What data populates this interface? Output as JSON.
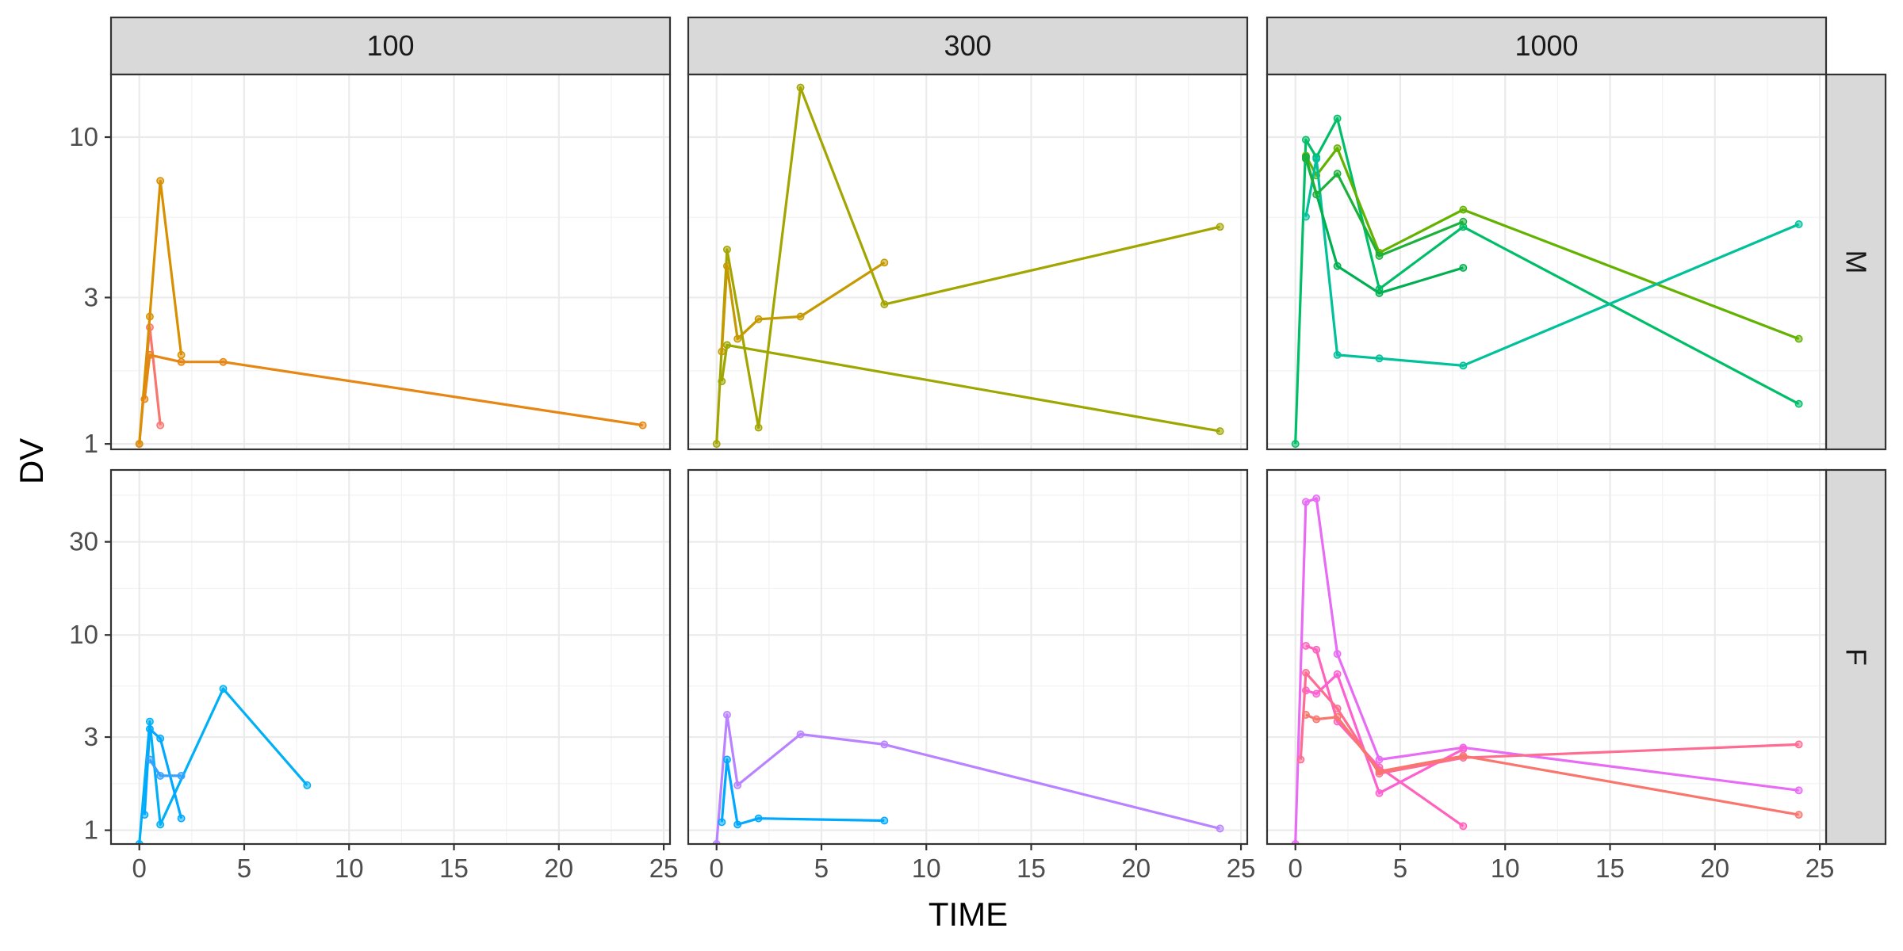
{
  "chart_data": {
    "type": "line",
    "xlabel": "TIME",
    "ylabel": "DV",
    "y_scale": "log10",
    "x_ticks": [
      0,
      5,
      10,
      15,
      20,
      25
    ],
    "x_tick_labels": [
      "0",
      "5",
      "10",
      "15",
      "20",
      "25"
    ],
    "grid": true,
    "legend": "none",
    "columns": [
      "100",
      "300",
      "1000"
    ],
    "rows": [
      "M",
      "F"
    ],
    "panels": [
      {
        "column": "100",
        "row": "M",
        "ylim": [
          0.96,
          16
        ],
        "y_ticks": [
          1,
          3,
          10
        ],
        "y_tick_labels": [
          "1",
          "3",
          "10"
        ],
        "series": [
          {
            "color": "#F8766D",
            "x": [
              0,
              0.5,
              1
            ],
            "y": [
              1,
              2.4,
              1.15
            ]
          },
          {
            "color": "#D89000",
            "x": [
              0,
              0.5,
              1,
              2
            ],
            "y": [
              1,
              2.6,
              7.2,
              1.95
            ]
          },
          {
            "color": "#E76BF3",
            "x": [],
            "y": []
          },
          {
            "color": "#E68613",
            "x": [
              0.25,
              0.5,
              2,
              4,
              24
            ],
            "y": [
              1.4,
              1.95,
              1.85,
              1.85,
              1.15
            ]
          }
        ]
      },
      {
        "column": "300",
        "row": "M",
        "ylim": [
          0.96,
          16
        ],
        "y_ticks": [
          1,
          3,
          10
        ],
        "y_tick_labels": [
          "1",
          "3",
          "10"
        ],
        "series": [
          {
            "color": "#A3A500",
            "x": [
              0,
              0.5,
              2,
              4,
              8,
              24
            ],
            "y": [
              1,
              4.3,
              1.13,
              14.5,
              2.85,
              5.1
            ]
          },
          {
            "color": "#C49A00",
            "x": [
              0.25,
              0.5,
              1,
              2,
              4,
              8
            ],
            "y": [
              2.0,
              3.8,
              2.2,
              2.55,
              2.6,
              3.9
            ]
          },
          {
            "color": "#9DA700",
            "x": [
              0.25,
              0.5,
              24
            ],
            "y": [
              1.6,
              2.1,
              1.1
            ]
          }
        ]
      },
      {
        "column": "1000",
        "row": "M",
        "ylim": [
          0.96,
          16
        ],
        "y_ticks": [
          1,
          3,
          10
        ],
        "y_tick_labels": [
          "1",
          "3",
          "10"
        ],
        "series": [
          {
            "color": "#00BE67",
            "x": [
              0,
              0.5,
              1,
              2,
              4,
              8,
              24
            ],
            "y": [
              1,
              9.8,
              8.6,
              11.5,
              3.2,
              5.1,
              1.35
            ]
          },
          {
            "color": "#64B200",
            "x": [
              0.5,
              1,
              2,
              4,
              8,
              24
            ],
            "y": [
              8.7,
              7.5,
              9.2,
              4.2,
              5.8,
              2.2
            ]
          },
          {
            "color": "#00C19A",
            "x": [
              0.5,
              1,
              2,
              4,
              8,
              24
            ],
            "y": [
              5.5,
              8.5,
              1.95,
              1.9,
              1.8,
              5.2
            ]
          },
          {
            "color": "#00B050",
            "x": [
              0.5,
              2,
              4,
              8
            ],
            "y": [
              8.6,
              3.8,
              3.1,
              3.75
            ]
          },
          {
            "color": "#1BB13A",
            "x": [
              0.5,
              1,
              2,
              4,
              8
            ],
            "y": [
              8.5,
              6.5,
              7.6,
              4.1,
              5.3
            ]
          }
        ]
      },
      {
        "column": "100",
        "row": "F",
        "ylim": [
          0.85,
          70
        ],
        "y_ticks": [
          1,
          3,
          10,
          30
        ],
        "y_tick_labels": [
          "1",
          "3",
          "10",
          "30"
        ],
        "series": [
          {
            "color": "#00B0F6",
            "x": [
              0,
              0.5,
              1,
              4,
              8
            ],
            "y": [
              0.85,
              3.6,
              1.07,
              5.3,
              1.7
            ]
          },
          {
            "color": "#00A9FF",
            "x": [
              0.25,
              0.5,
              1,
              2
            ],
            "y": [
              1.2,
              3.3,
              2.95,
              1.15
            ]
          },
          {
            "color": "#35A2FF",
            "x": [
              0.5,
              1,
              2
            ],
            "y": [
              2.3,
              1.9,
              1.9
            ]
          }
        ]
      },
      {
        "column": "300",
        "row": "F",
        "ylim": [
          0.85,
          70
        ],
        "y_ticks": [
          1,
          3,
          10,
          30
        ],
        "y_tick_labels": [
          "1",
          "3",
          "10",
          "30"
        ],
        "series": [
          {
            "color": "#B983FF",
            "x": [
              0,
              0.5,
              1,
              4,
              8,
              24
            ],
            "y": [
              0.85,
              3.9,
              1.7,
              3.1,
              2.75,
              1.02
            ]
          },
          {
            "color": "#00A9FF",
            "x": [
              0.25,
              0.5,
              1,
              2,
              8
            ],
            "y": [
              1.1,
              2.3,
              1.07,
              1.15,
              1.12
            ]
          }
        ]
      },
      {
        "column": "1000",
        "row": "F",
        "ylim": [
          0.85,
          70
        ],
        "y_ticks": [
          1,
          3,
          10,
          30
        ],
        "y_tick_labels": [
          "1",
          "3",
          "10",
          "30"
        ],
        "series": [
          {
            "color": "#E76BF3",
            "x": [
              0,
              0.5,
              1,
              2,
              4,
              8,
              24
            ],
            "y": [
              0.85,
              48,
              50,
              8,
              2.3,
              2.65,
              1.6
            ]
          },
          {
            "color": "#FF62BC",
            "x": [
              0.5,
              1,
              2,
              4,
              8
            ],
            "y": [
              8.8,
              8.4,
              3.6,
              2.1,
              1.05
            ]
          },
          {
            "color": "#FD61D1",
            "x": [
              0.5,
              1,
              2,
              4,
              8
            ],
            "y": [
              5.2,
              5.0,
              6.3,
              1.55,
              2.6
            ]
          },
          {
            "color": "#FF6C91",
            "x": [
              0.25,
              0.5,
              2,
              4,
              8,
              24
            ],
            "y": [
              2.3,
              6.4,
              4.2,
              1.95,
              2.35,
              2.75
            ]
          },
          {
            "color": "#F8766D",
            "x": [
              0.5,
              1,
              2,
              4,
              8,
              24
            ],
            "y": [
              3.9,
              3.7,
              3.8,
              2.0,
              2.4,
              1.2
            ]
          }
        ]
      }
    ]
  }
}
